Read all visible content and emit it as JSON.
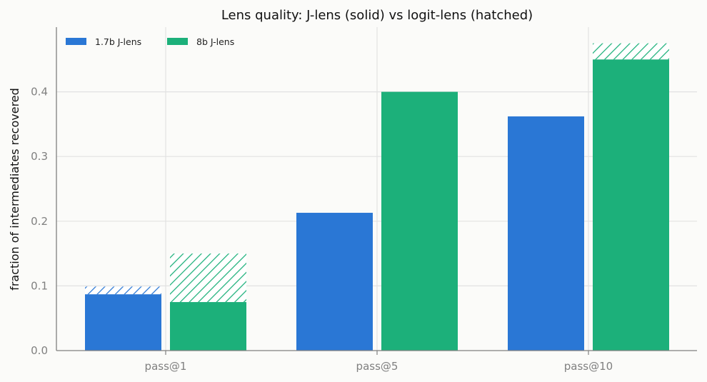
{
  "chart_data": {
    "type": "bar",
    "title": "Lens quality: J-lens (solid) vs logit-lens (hatched)",
    "xlabel": "",
    "ylabel": "fraction of intermediates recovered",
    "categories": [
      "pass@1",
      "pass@5",
      "pass@10"
    ],
    "ylim": [
      0,
      0.5
    ],
    "yticks": [
      "0.0",
      "0.1",
      "0.2",
      "0.3",
      "0.4"
    ],
    "grid": true,
    "legend_position": "top-left",
    "series": [
      {
        "name": "1.7b J-lens",
        "color": "#2a77d5",
        "values": [
          0.087,
          0.213,
          0.362
        ],
        "logit_lens_values": [
          0.099,
          0.213,
          0.362
        ]
      },
      {
        "name": "8b J-lens",
        "color": "#1cb07a",
        "values": [
          0.075,
          0.4,
          0.45
        ],
        "logit_lens_values": [
          0.15,
          0.4,
          0.475
        ]
      }
    ]
  }
}
